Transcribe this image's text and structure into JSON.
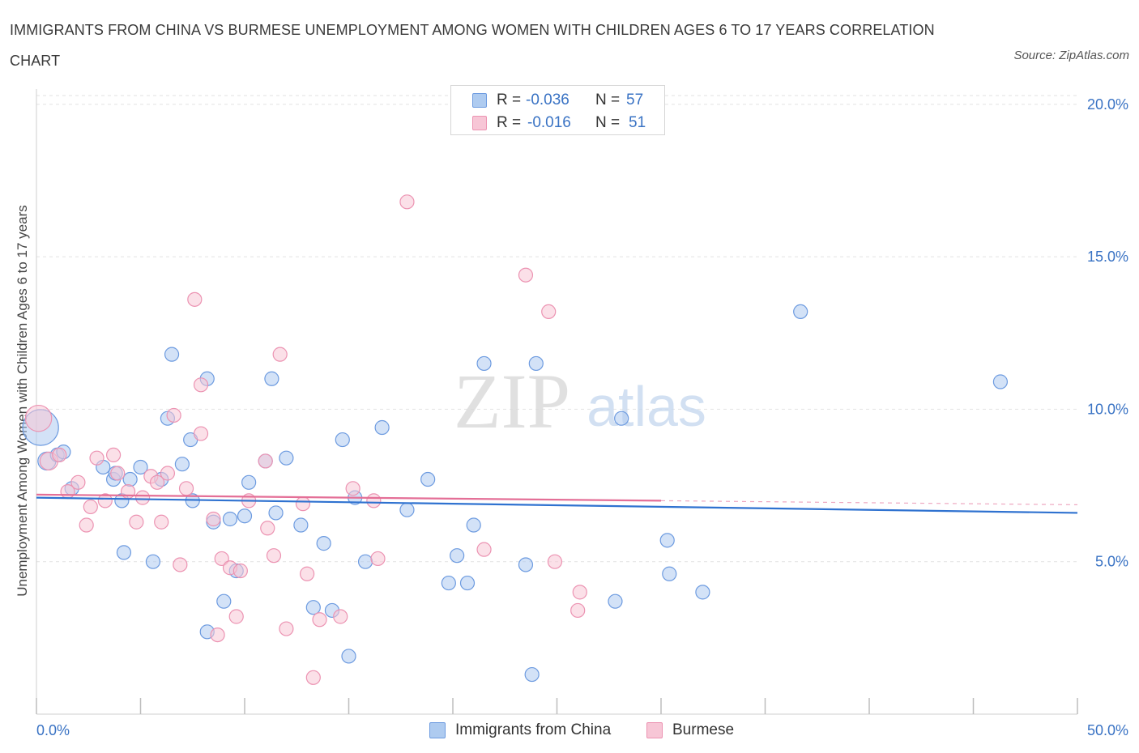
{
  "title": "IMMIGRANTS FROM CHINA VS BURMESE UNEMPLOYMENT AMONG WOMEN WITH CHILDREN AGES 6 TO 17 YEARS CORRELATION CHART",
  "source": "Source: ZipAtlas.com",
  "watermark": {
    "zip": "ZIP",
    "atlas": "atlas"
  },
  "legend": {
    "r_label": "R =",
    "n_label": "N =",
    "rows": [
      {
        "r": "-0.036",
        "n": "57"
      },
      {
        "r": "-0.016",
        "n": "51"
      }
    ]
  },
  "colors": {
    "china_fill": "#aecbf0",
    "china_stroke": "#6d9be0",
    "china_line": "#2f72d0",
    "burmese_fill": "#f7c6d6",
    "burmese_stroke": "#ec93b2",
    "burmese_line": "#e46f97",
    "grid": "#e2e2e2",
    "axis_text": "#3a73c4"
  },
  "chart_data": {
    "type": "scatter",
    "title": "IMMIGRANTS FROM CHINA VS BURMESE UNEMPLOYMENT AMONG WOMEN WITH CHILDREN AGES 6 TO 17 YEARS CORRELATION CHART",
    "xlabel": "",
    "ylabel": "Unemployment Among Women with Children Ages 6 to 17 years",
    "xlim": [
      0,
      50
    ],
    "ylim": [
      0,
      20.5
    ],
    "x_tick_labels": [
      "0.0%",
      "50.0%"
    ],
    "y_ticks": [
      5,
      10,
      15,
      20
    ],
    "y_tick_labels": [
      "5.0%",
      "10.0%",
      "15.0%",
      "20.0%"
    ],
    "grid": true,
    "legend_position": "bottom",
    "series": [
      {
        "name": "Immigrants from China",
        "r": -0.036,
        "n": 57,
        "trend": [
          [
            0,
            7.1
          ],
          [
            50,
            6.6
          ]
        ],
        "points": [
          [
            0.2,
            9.4,
            2.6
          ],
          [
            0.5,
            8.3,
            1.3
          ],
          [
            1.0,
            8.5,
            1
          ],
          [
            1.3,
            8.6,
            1
          ],
          [
            1.7,
            7.4,
            1
          ],
          [
            3.2,
            8.1,
            1
          ],
          [
            3.7,
            7.7,
            1
          ],
          [
            3.8,
            7.9,
            1
          ],
          [
            4.1,
            7.0,
            1
          ],
          [
            4.5,
            7.7,
            1
          ],
          [
            5.0,
            8.1,
            1
          ],
          [
            6.3,
            9.7,
            1
          ],
          [
            7.4,
            9.0,
            1
          ],
          [
            6.5,
            11.8,
            1
          ],
          [
            8.2,
            11.0,
            1
          ],
          [
            4.2,
            5.3,
            1
          ],
          [
            5.6,
            5.0,
            1
          ],
          [
            6.0,
            7.7,
            1
          ],
          [
            8.5,
            6.3,
            1
          ],
          [
            9.3,
            6.4,
            1
          ],
          [
            7.5,
            7.0,
            1
          ],
          [
            9.0,
            3.7,
            1
          ],
          [
            8.2,
            2.7,
            1
          ],
          [
            9.6,
            4.7,
            1
          ],
          [
            10.2,
            7.6,
            1
          ],
          [
            11.0,
            8.3,
            1
          ],
          [
            11.5,
            6.6,
            1
          ],
          [
            11.3,
            11.0,
            1
          ],
          [
            12.0,
            8.4,
            1
          ],
          [
            12.7,
            6.2,
            1
          ],
          [
            13.3,
            3.5,
            1
          ],
          [
            13.8,
            5.6,
            1
          ],
          [
            15.3,
            7.1,
            1
          ],
          [
            14.2,
            3.4,
            1
          ],
          [
            14.7,
            9.0,
            1
          ],
          [
            15.0,
            1.9,
            1
          ],
          [
            15.8,
            5.0,
            1
          ],
          [
            16.6,
            9.4,
            1
          ],
          [
            17.8,
            6.7,
            1
          ],
          [
            18.8,
            7.7,
            1
          ],
          [
            19.8,
            4.3,
            1
          ],
          [
            20.2,
            5.2,
            1
          ],
          [
            20.7,
            4.3,
            1
          ],
          [
            21.0,
            6.2,
            1
          ],
          [
            21.5,
            11.5,
            1
          ],
          [
            23.5,
            4.9,
            1
          ],
          [
            24.0,
            11.5,
            1
          ],
          [
            23.8,
            1.3,
            1
          ],
          [
            27.8,
            3.7,
            1
          ],
          [
            28.1,
            9.7,
            1
          ],
          [
            30.3,
            5.7,
            1
          ],
          [
            30.4,
            4.6,
            1
          ],
          [
            32.0,
            4.0,
            1
          ],
          [
            36.7,
            13.2,
            1
          ],
          [
            46.3,
            10.9,
            1
          ],
          [
            10.0,
            6.5,
            1
          ],
          [
            7.0,
            8.2,
            1
          ]
        ]
      },
      {
        "name": "Burmese",
        "r": -0.016,
        "n": 51,
        "trend": [
          [
            0,
            7.2
          ],
          [
            30,
            7.0
          ]
        ],
        "points": [
          [
            0.1,
            9.7,
            1.9
          ],
          [
            0.6,
            8.3,
            1.3
          ],
          [
            1.1,
            8.5,
            1
          ],
          [
            1.5,
            7.3,
            1
          ],
          [
            2.0,
            7.6,
            1
          ],
          [
            2.4,
            6.2,
            1
          ],
          [
            2.6,
            6.8,
            1
          ],
          [
            2.9,
            8.4,
            1
          ],
          [
            3.3,
            7.0,
            1
          ],
          [
            3.7,
            8.5,
            1
          ],
          [
            3.9,
            7.9,
            1
          ],
          [
            4.4,
            7.3,
            1
          ],
          [
            4.8,
            6.3,
            1
          ],
          [
            5.1,
            7.1,
            1
          ],
          [
            5.5,
            7.8,
            1
          ],
          [
            5.8,
            7.6,
            1
          ],
          [
            6.0,
            6.3,
            1
          ],
          [
            6.3,
            7.9,
            1
          ],
          [
            6.6,
            9.8,
            1
          ],
          [
            6.9,
            4.9,
            1
          ],
          [
            7.2,
            7.4,
            1
          ],
          [
            7.6,
            13.6,
            1
          ],
          [
            7.9,
            10.8,
            1
          ],
          [
            7.9,
            9.2,
            1
          ],
          [
            8.5,
            6.4,
            1
          ],
          [
            8.7,
            2.6,
            1
          ],
          [
            8.9,
            5.1,
            1
          ],
          [
            9.3,
            4.8,
            1
          ],
          [
            9.6,
            3.2,
            1
          ],
          [
            9.8,
            4.7,
            1
          ],
          [
            10.2,
            7.0,
            1
          ],
          [
            11.0,
            8.3,
            1
          ],
          [
            11.1,
            6.1,
            1
          ],
          [
            11.4,
            5.2,
            1
          ],
          [
            11.7,
            11.8,
            1
          ],
          [
            12.0,
            2.8,
            1
          ],
          [
            12.8,
            6.9,
            1
          ],
          [
            13.0,
            4.6,
            1
          ],
          [
            13.6,
            3.1,
            1
          ],
          [
            13.3,
            1.2,
            1
          ],
          [
            14.6,
            3.2,
            1
          ],
          [
            15.2,
            7.4,
            1
          ],
          [
            16.2,
            7.0,
            1
          ],
          [
            16.4,
            5.1,
            1
          ],
          [
            17.8,
            16.8,
            1
          ],
          [
            21.5,
            5.4,
            1
          ],
          [
            23.5,
            14.4,
            1
          ],
          [
            24.6,
            13.2,
            1
          ],
          [
            24.9,
            5.0,
            1
          ],
          [
            26.0,
            3.4,
            1
          ],
          [
            26.1,
            4.0,
            1
          ]
        ]
      }
    ]
  },
  "bottom_legend": [
    "Immigrants from China",
    "Burmese"
  ]
}
